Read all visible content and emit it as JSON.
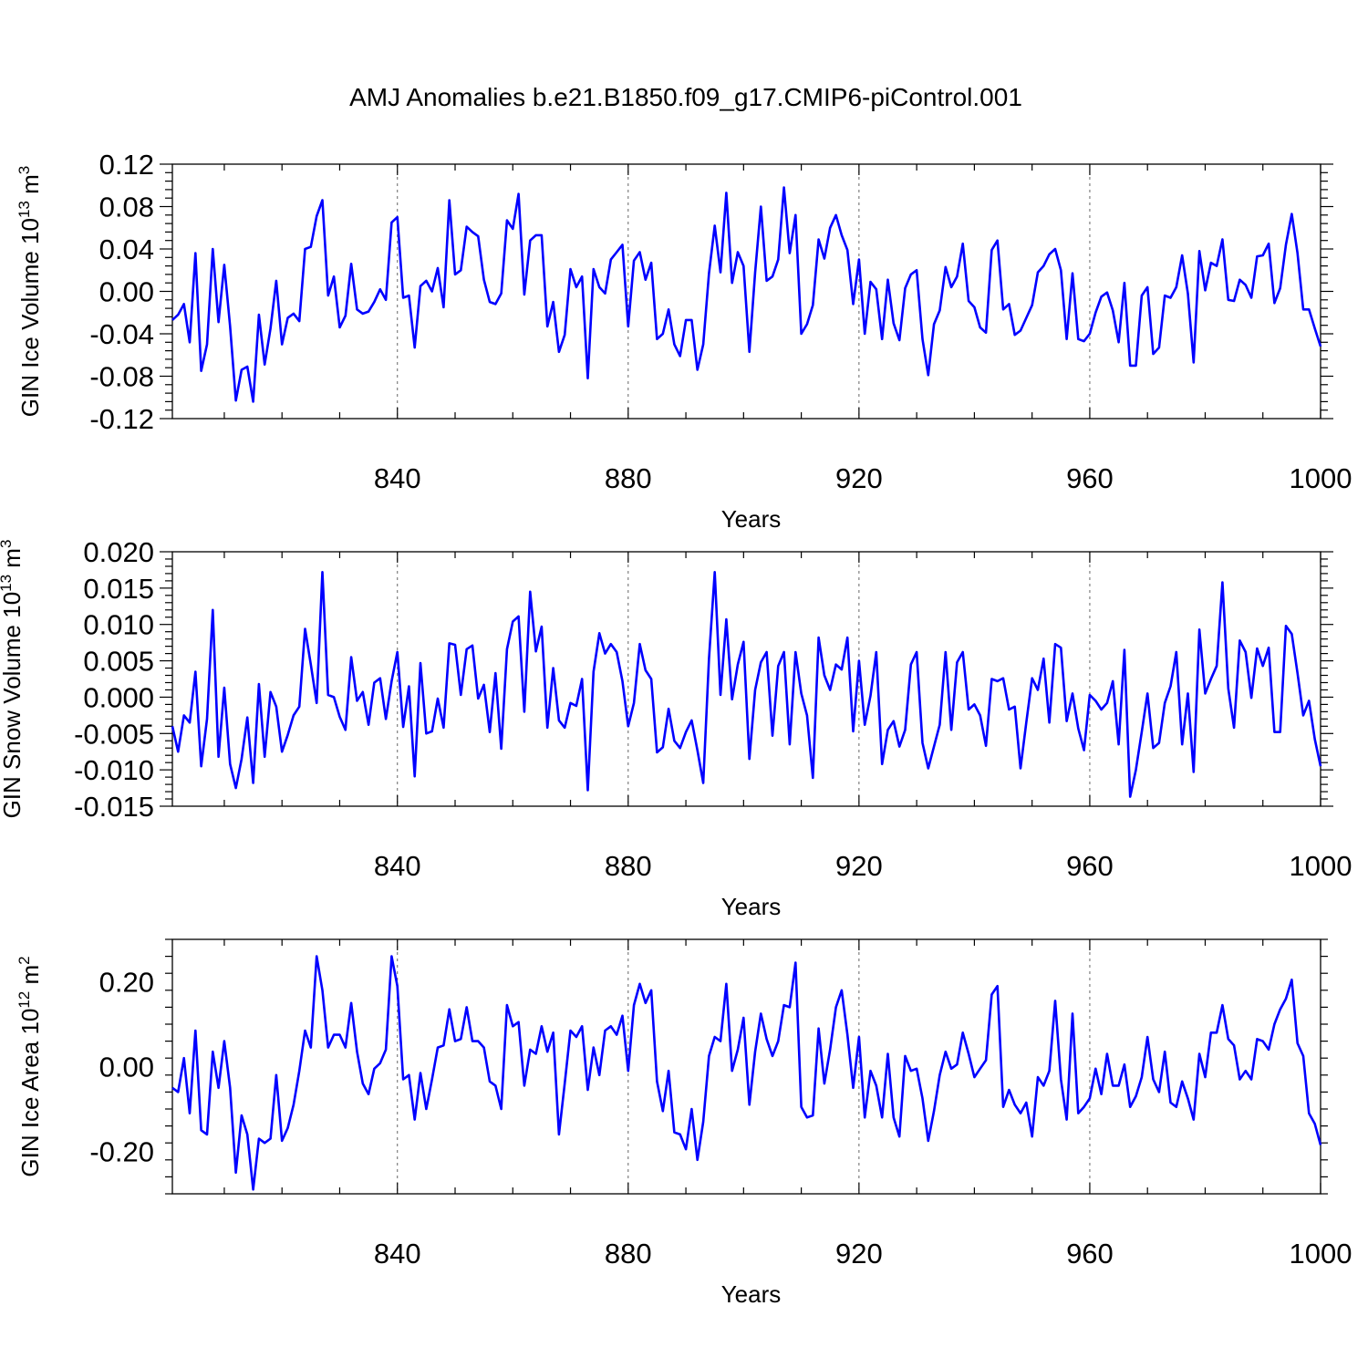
{
  "title": "AMJ Anomalies b.e21.B1850.f09_g17.CMIP6-piControl.001",
  "colors": {
    "line": "#0000ff",
    "grid": "#666666",
    "axis": "#000000"
  },
  "chart_data": [
    {
      "type": "line",
      "ylabel": {
        "main": "GIN Ice Volume 10",
        "sup": "13",
        "unit": " m",
        "unitsup": "3"
      },
      "xlabel": "Years",
      "xlim": [
        801,
        1000
      ],
      "ylim": [
        -0.12,
        0.12
      ],
      "grid": "x-dashed",
      "xticks": [
        840,
        880,
        920,
        960,
        1000
      ],
      "xtick_labels": [
        "840",
        "880",
        "920",
        "960",
        "1000"
      ],
      "yticks": [
        -0.12,
        -0.08,
        -0.04,
        0.0,
        0.04,
        0.08,
        0.12
      ],
      "ytick_labels": [
        "-0.12",
        "-0.08",
        "-0.04",
        "0.00",
        "0.04",
        "0.08",
        "0.12"
      ],
      "x_start": 801,
      "values": [
        -0.027,
        -0.022,
        -0.012,
        -0.048,
        0.036,
        -0.075,
        -0.05,
        0.04,
        -0.029,
        0.025,
        -0.033,
        -0.103,
        -0.074,
        -0.071,
        -0.104,
        -0.022,
        -0.069,
        -0.035,
        0.01,
        -0.05,
        -0.025,
        -0.021,
        -0.028,
        0.04,
        0.042,
        0.071,
        0.086,
        -0.004,
        0.014,
        -0.034,
        -0.023,
        0.026,
        -0.017,
        -0.021,
        -0.019,
        -0.01,
        0.002,
        -0.008,
        0.065,
        0.07,
        -0.006,
        -0.004,
        -0.053,
        0.005,
        0.01,
        0.0,
        0.022,
        -0.015,
        0.086,
        0.016,
        0.02,
        0.061,
        0.056,
        0.052,
        0.011,
        -0.01,
        -0.012,
        -0.002,
        0.067,
        0.059,
        0.092,
        -0.003,
        0.048,
        0.053,
        0.053,
        -0.033,
        -0.01,
        -0.057,
        -0.041,
        0.021,
        0.004,
        0.014,
        -0.082,
        0.021,
        0.004,
        -0.002,
        0.03,
        0.037,
        0.044,
        -0.033,
        0.029,
        0.037,
        0.011,
        0.027,
        -0.045,
        -0.04,
        -0.017,
        -0.05,
        -0.061,
        -0.027,
        -0.027,
        -0.074,
        -0.05,
        0.017,
        0.062,
        0.018,
        0.093,
        0.008,
        0.037,
        0.024,
        -0.057,
        0.018,
        0.08,
        0.01,
        0.014,
        0.03,
        0.098,
        0.036,
        0.072,
        -0.04,
        -0.031,
        -0.013,
        0.049,
        0.031,
        0.06,
        0.072,
        0.053,
        0.039,
        -0.012,
        0.03,
        -0.04,
        0.009,
        0.002,
        -0.045,
        0.011,
        -0.03,
        -0.046,
        0.003,
        0.016,
        0.02,
        -0.045,
        -0.079,
        -0.031,
        -0.018,
        0.023,
        0.004,
        0.014,
        0.045,
        -0.009,
        -0.015,
        -0.034,
        -0.039,
        0.039,
        0.048,
        -0.017,
        -0.012,
        -0.041,
        -0.037,
        -0.025,
        -0.013,
        0.018,
        0.024,
        0.035,
        0.04,
        0.02,
        -0.045,
        0.017,
        -0.045,
        -0.047,
        -0.04,
        -0.02,
        -0.005,
        -0.001,
        -0.018,
        -0.048,
        0.008,
        -0.07,
        -0.07,
        -0.004,
        0.004,
        -0.059,
        -0.053,
        -0.004,
        -0.006,
        0.004,
        0.034,
        -0.002,
        -0.067,
        0.038,
        0.001,
        0.027,
        0.024,
        0.049,
        -0.008,
        -0.009,
        0.011,
        0.006,
        -0.006,
        0.033,
        0.034,
        0.045,
        -0.011,
        0.003,
        0.044,
        0.073,
        0.036,
        -0.017,
        -0.017,
        -0.035,
        -0.052
      ]
    },
    {
      "type": "line",
      "ylabel": {
        "main": "GIN Snow Volume 10",
        "sup": "13",
        "unit": " m",
        "unitsup": "3"
      },
      "xlabel": "Years",
      "xlim": [
        801,
        1000
      ],
      "ylim": [
        -0.015,
        0.02
      ],
      "grid": "x-dashed",
      "xticks": [
        840,
        880,
        920,
        960,
        1000
      ],
      "xtick_labels": [
        "840",
        "880",
        "920",
        "960",
        "1000"
      ],
      "yticks": [
        -0.015,
        -0.01,
        -0.005,
        0.0,
        0.005,
        0.01,
        0.015,
        0.02
      ],
      "ytick_labels": [
        "-0.015",
        "-0.010",
        "-0.005",
        "0.000",
        "0.005",
        "0.010",
        "0.015",
        "0.020"
      ],
      "x_start": 801,
      "values": [
        -0.004,
        -0.0075,
        -0.0025,
        -0.0035,
        0.0035,
        -0.0095,
        -0.003,
        0.012,
        -0.0082,
        0.0013,
        -0.0092,
        -0.0125,
        -0.0085,
        -0.0028,
        -0.0118,
        0.0018,
        -0.0082,
        0.0007,
        -0.0013,
        -0.0075,
        -0.0052,
        -0.0025,
        -0.0013,
        0.0094,
        0.0045,
        -0.0008,
        0.0172,
        0.0003,
        0.0,
        -0.0027,
        -0.0045,
        0.0055,
        -0.0005,
        0.0007,
        -0.0038,
        0.002,
        0.0026,
        -0.003,
        0.0022,
        0.0062,
        -0.0041,
        0.0015,
        -0.0109,
        0.0047,
        -0.005,
        -0.0047,
        -0.0002,
        -0.0042,
        0.0074,
        0.0072,
        0.0003,
        0.0066,
        0.0071,
        -0.0002,
        0.0017,
        -0.0048,
        0.0033,
        -0.0071,
        0.0066,
        0.0104,
        0.0111,
        -0.002,
        0.0145,
        0.0063,
        0.0097,
        -0.0042,
        0.004,
        -0.0032,
        -0.0042,
        -0.0008,
        -0.0012,
        0.0025,
        -0.0128,
        0.0035,
        0.0088,
        0.006,
        0.0073,
        0.0062,
        0.0022,
        -0.004,
        -0.0008,
        0.0073,
        0.0037,
        0.0025,
        -0.0076,
        -0.0069,
        -0.0016,
        -0.006,
        -0.007,
        -0.0048,
        -0.0032,
        -0.0073,
        -0.0118,
        0.0053,
        0.0172,
        0.0003,
        0.0107,
        -0.0003,
        0.0045,
        0.0076,
        -0.0085,
        0.001,
        0.0048,
        0.0062,
        -0.0053,
        0.0043,
        0.0062,
        -0.0065,
        0.0062,
        0.0005,
        -0.0025,
        -0.0111,
        0.0082,
        0.003,
        0.001,
        0.0045,
        0.0038,
        0.0082,
        -0.0047,
        0.005,
        -0.0038,
        0.0002,
        0.0062,
        -0.0092,
        -0.0045,
        -0.0033,
        -0.0068,
        -0.0045,
        0.0045,
        0.0062,
        -0.0063,
        -0.0098,
        -0.0068,
        -0.0038,
        0.0062,
        -0.0045,
        0.0048,
        0.0062,
        -0.0017,
        -0.001,
        -0.0025,
        -0.0067,
        0.0025,
        0.0022,
        0.0026,
        -0.0017,
        -0.0013,
        -0.0098,
        -0.0035,
        0.0026,
        0.001,
        0.0053,
        -0.0035,
        0.0073,
        0.0068,
        -0.0033,
        0.0005,
        -0.0043,
        -0.0073,
        0.0003,
        -0.0005,
        -0.0017,
        -0.0008,
        0.0022,
        -0.0065,
        0.0065,
        -0.0137,
        -0.01,
        -0.0048,
        0.0005,
        -0.007,
        -0.0063,
        -0.0008,
        0.0015,
        0.0062,
        -0.0065,
        0.0005,
        -0.0103,
        0.0093,
        0.0005,
        0.0025,
        0.0043,
        0.0158,
        0.0012,
        -0.0042,
        0.0078,
        0.0062,
        -0.0001,
        0.0067,
        0.0043,
        0.0068,
        -0.0048,
        -0.0048,
        0.0098,
        0.0087,
        0.0033,
        -0.0025,
        -0.0005,
        -0.0058,
        -0.0095
      ]
    },
    {
      "type": "line",
      "ylabel": {
        "main": "GIN Ice Area 10",
        "sup": "12",
        "unit": " m",
        "unitsup": "2"
      },
      "xlabel": "Years",
      "xlim": [
        801,
        1000
      ],
      "ylim": [
        -0.3,
        0.3
      ],
      "grid": "x-dashed",
      "xticks": [
        840,
        880,
        920,
        960,
        1000
      ],
      "xtick_labels": [
        "840",
        "880",
        "920",
        "960",
        "1000"
      ],
      "yticks": [
        -0.2,
        0.0,
        0.2
      ],
      "ytick_labels": [
        "-0.20",
        "0.00",
        "0.20"
      ],
      "x_start": 801,
      "values": [
        -0.05,
        -0.06,
        0.02,
        -0.11,
        0.085,
        -0.15,
        -0.16,
        0.035,
        -0.05,
        0.06,
        -0.05,
        -0.25,
        -0.115,
        -0.16,
        -0.29,
        -0.17,
        -0.18,
        -0.17,
        -0.02,
        -0.175,
        -0.145,
        -0.09,
        -0.01,
        0.085,
        0.045,
        0.26,
        0.18,
        0.045,
        0.075,
        0.075,
        0.045,
        0.15,
        0.035,
        -0.04,
        -0.065,
        -0.005,
        0.008,
        0.04,
        0.26,
        0.19,
        -0.03,
        -0.02,
        -0.125,
        -0.015,
        -0.1,
        -0.03,
        0.045,
        0.05,
        0.135,
        0.06,
        0.065,
        0.14,
        0.06,
        0.06,
        0.045,
        -0.035,
        -0.045,
        -0.1,
        0.145,
        0.095,
        0.105,
        -0.045,
        0.04,
        0.03,
        0.095,
        0.035,
        0.08,
        -0.16,
        -0.04,
        0.085,
        0.07,
        0.095,
        -0.055,
        0.045,
        -0.02,
        0.085,
        0.095,
        0.075,
        0.12,
        -0.01,
        0.145,
        0.195,
        0.15,
        0.18,
        -0.035,
        -0.105,
        -0.01,
        -0.155,
        -0.16,
        -0.195,
        -0.1,
        -0.22,
        -0.13,
        0.025,
        0.07,
        0.06,
        0.195,
        -0.01,
        0.04,
        0.115,
        -0.09,
        0.035,
        0.125,
        0.065,
        0.025,
        0.06,
        0.145,
        0.14,
        0.245,
        -0.095,
        -0.12,
        -0.115,
        0.09,
        -0.04,
        0.04,
        0.14,
        0.18,
        0.075,
        -0.05,
        0.07,
        -0.12,
        -0.01,
        -0.045,
        -0.12,
        0.03,
        -0.12,
        -0.165,
        0.025,
        -0.01,
        -0.005,
        -0.075,
        -0.175,
        -0.105,
        -0.02,
        0.035,
        -0.005,
        0.005,
        0.08,
        0.03,
        -0.025,
        -0.005,
        0.015,
        0.17,
        0.19,
        -0.095,
        -0.055,
        -0.09,
        -0.11,
        -0.085,
        -0.165,
        -0.025,
        -0.045,
        -0.01,
        0.155,
        -0.03,
        -0.125,
        0.125,
        -0.11,
        -0.095,
        -0.075,
        -0.005,
        -0.065,
        0.03,
        -0.045,
        -0.045,
        0.005,
        -0.095,
        -0.07,
        -0.025,
        0.07,
        -0.03,
        -0.06,
        0.035,
        -0.085,
        -0.095,
        -0.035,
        -0.075,
        -0.125,
        0.03,
        -0.025,
        0.08,
        0.08,
        0.145,
        0.065,
        0.05,
        -0.03,
        -0.01,
        -0.03,
        0.065,
        0.06,
        0.04,
        0.1,
        0.135,
        0.16,
        0.205,
        0.055,
        0.025,
        -0.11,
        -0.135,
        -0.185
      ]
    }
  ]
}
